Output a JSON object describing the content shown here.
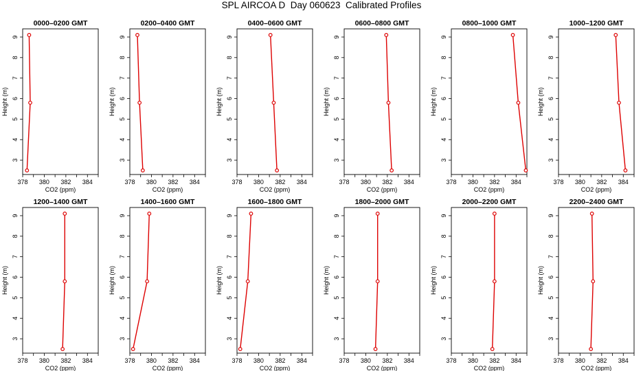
{
  "title": "SPL AIRCOA D  Day 060623  Calibrated Profiles",
  "colors": {
    "profile": "#dd0000",
    "axis": "#000000"
  },
  "chart_data": [
    {
      "type": "line",
      "title": "0000–0200 GMT",
      "xlabel": "CO2 (ppm)",
      "ylabel": "Height (m)",
      "xlim": [
        378,
        385
      ],
      "ylim": [
        2.3,
        9.4
      ],
      "xticks": [
        "378",
        "380",
        "382",
        "384"
      ],
      "yticks": [
        "3",
        "4",
        "5",
        "6",
        "7",
        "8",
        "9"
      ],
      "x": [
        378.4,
        378.7,
        378.6
      ],
      "y": [
        2.5,
        5.8,
        9.1
      ]
    },
    {
      "type": "line",
      "title": "0200–0400 GMT",
      "xlabel": "CO2 (ppm)",
      "ylabel": "Height (m)",
      "xlim": [
        378,
        385
      ],
      "ylim": [
        2.3,
        9.4
      ],
      "xticks": [
        "378",
        "380",
        "382",
        "384"
      ],
      "yticks": [
        "3",
        "4",
        "5",
        "6",
        "7",
        "8",
        "9"
      ],
      "x": [
        379.2,
        378.9,
        378.7
      ],
      "y": [
        2.5,
        5.8,
        9.1
      ]
    },
    {
      "type": "line",
      "title": "0400–0600 GMT",
      "xlabel": "CO2 (ppm)",
      "ylabel": "Height (m)",
      "xlim": [
        378,
        385
      ],
      "ylim": [
        2.3,
        9.4
      ],
      "xticks": [
        "378",
        "380",
        "382",
        "384"
      ],
      "yticks": [
        "3",
        "4",
        "5",
        "6",
        "7",
        "8",
        "9"
      ],
      "x": [
        381.7,
        381.4,
        381.1
      ],
      "y": [
        2.5,
        5.8,
        9.1
      ]
    },
    {
      "type": "line",
      "title": "0600–0800 GMT",
      "xlabel": "CO2 (ppm)",
      "ylabel": "Height (m)",
      "xlim": [
        378,
        385
      ],
      "ylim": [
        2.3,
        9.4
      ],
      "xticks": [
        "378",
        "380",
        "382",
        "384"
      ],
      "yticks": [
        "3",
        "4",
        "5",
        "6",
        "7",
        "8",
        "9"
      ],
      "x": [
        382.4,
        382.1,
        381.9
      ],
      "y": [
        2.5,
        5.8,
        9.1
      ]
    },
    {
      "type": "line",
      "title": "0800–1000 GMT",
      "xlabel": "CO2 (ppm)",
      "ylabel": "Height (m)",
      "xlim": [
        378,
        385
      ],
      "ylim": [
        2.3,
        9.4
      ],
      "xticks": [
        "378",
        "380",
        "382",
        "384"
      ],
      "yticks": [
        "3",
        "4",
        "5",
        "6",
        "7",
        "8",
        "9"
      ],
      "x": [
        384.9,
        384.2,
        383.7
      ],
      "y": [
        2.5,
        5.8,
        9.1
      ]
    },
    {
      "type": "line",
      "title": "1000–1200 GMT",
      "xlabel": "CO2 (ppm)",
      "ylabel": "Height (m)",
      "xlim": [
        378,
        385
      ],
      "ylim": [
        2.3,
        9.4
      ],
      "xticks": [
        "378",
        "380",
        "382",
        "384"
      ],
      "yticks": [
        "3",
        "4",
        "5",
        "6",
        "7",
        "8",
        "9"
      ],
      "x": [
        384.2,
        383.6,
        383.3
      ],
      "y": [
        2.5,
        5.8,
        9.1
      ]
    },
    {
      "type": "line",
      "title": "1200–1400 GMT",
      "xlabel": "CO2 (ppm)",
      "ylabel": "Height (m)",
      "xlim": [
        378,
        385
      ],
      "ylim": [
        2.3,
        9.4
      ],
      "xticks": [
        "378",
        "380",
        "382",
        "384"
      ],
      "yticks": [
        "3",
        "4",
        "5",
        "6",
        "7",
        "8",
        "9"
      ],
      "x": [
        381.7,
        381.9,
        381.9
      ],
      "y": [
        2.5,
        5.8,
        9.1
      ]
    },
    {
      "type": "line",
      "title": "1400–1600 GMT",
      "xlabel": "CO2 (ppm)",
      "ylabel": "Height (m)",
      "xlim": [
        378,
        385
      ],
      "ylim": [
        2.3,
        9.4
      ],
      "xticks": [
        "378",
        "380",
        "382",
        "384"
      ],
      "yticks": [
        "3",
        "4",
        "5",
        "6",
        "7",
        "8",
        "9"
      ],
      "x": [
        378.3,
        379.6,
        379.8
      ],
      "y": [
        2.5,
        5.8,
        9.1
      ]
    },
    {
      "type": "line",
      "title": "1600–1800 GMT",
      "xlabel": "CO2 (ppm)",
      "ylabel": "Height (m)",
      "xlim": [
        378,
        385
      ],
      "ylim": [
        2.3,
        9.4
      ],
      "xticks": [
        "378",
        "380",
        "382",
        "384"
      ],
      "yticks": [
        "3",
        "4",
        "5",
        "6",
        "7",
        "8",
        "9"
      ],
      "x": [
        378.3,
        379.0,
        379.3
      ],
      "y": [
        2.5,
        5.8,
        9.1
      ]
    },
    {
      "type": "line",
      "title": "1800–2000 GMT",
      "xlabel": "CO2 (ppm)",
      "ylabel": "Height (m)",
      "xlim": [
        378,
        385
      ],
      "ylim": [
        2.3,
        9.4
      ],
      "xticks": [
        "378",
        "380",
        "382",
        "384"
      ],
      "yticks": [
        "3",
        "4",
        "5",
        "6",
        "7",
        "8",
        "9"
      ],
      "x": [
        380.9,
        381.1,
        381.1
      ],
      "y": [
        2.5,
        5.8,
        9.1
      ]
    },
    {
      "type": "line",
      "title": "2000–2200 GMT",
      "xlabel": "CO2 (ppm)",
      "ylabel": "Height (m)",
      "xlim": [
        378,
        385
      ],
      "ylim": [
        2.3,
        9.4
      ],
      "xticks": [
        "378",
        "380",
        "382",
        "384"
      ],
      "yticks": [
        "3",
        "4",
        "5",
        "6",
        "7",
        "8",
        "9"
      ],
      "x": [
        381.8,
        382.0,
        382.0
      ],
      "y": [
        2.5,
        5.8,
        9.1
      ]
    },
    {
      "type": "line",
      "title": "2200–2400 GMT",
      "xlabel": "CO2 (ppm)",
      "ylabel": "Height (m)",
      "xlim": [
        378,
        385
      ],
      "ylim": [
        2.3,
        9.4
      ],
      "xticks": [
        "378",
        "380",
        "382",
        "384"
      ],
      "yticks": [
        "3",
        "4",
        "5",
        "6",
        "7",
        "8",
        "9"
      ],
      "x": [
        381.0,
        381.2,
        381.1
      ],
      "y": [
        2.5,
        5.8,
        9.1
      ]
    }
  ]
}
